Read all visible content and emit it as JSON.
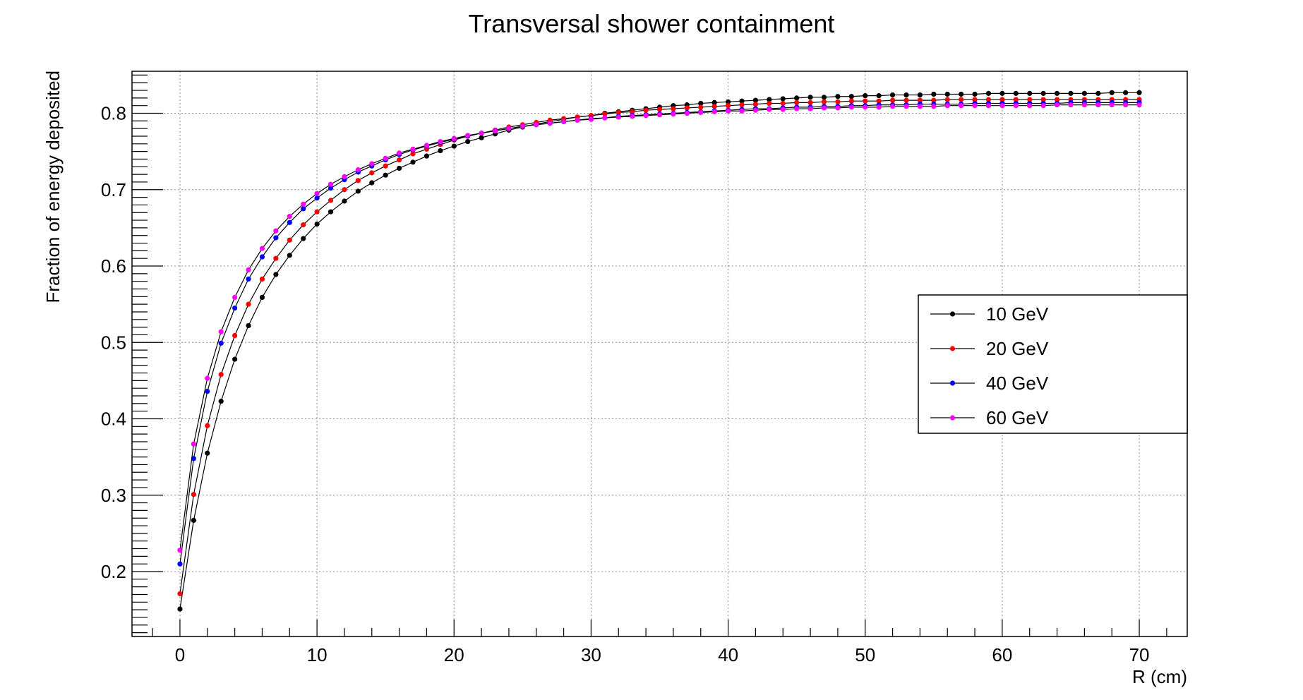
{
  "chart_data": {
    "type": "line",
    "title": "Transversal shower containment",
    "xlabel": "R (cm)",
    "ylabel": "Fraction of energy deposited",
    "xlim": [
      -3.5,
      73.5
    ],
    "ylim": [
      0.115,
      0.855
    ],
    "x_ticks": [
      0,
      10,
      20,
      30,
      40,
      50,
      60,
      70
    ],
    "x_tick_labels": [
      "0",
      "10",
      "20",
      "30",
      "40",
      "50",
      "60",
      "70"
    ],
    "y_ticks": [
      0.2,
      0.3,
      0.4,
      0.5,
      0.6,
      0.7,
      0.8
    ],
    "y_tick_labels": [
      "0.2",
      "0.3",
      "0.4",
      "0.5",
      "0.6",
      "0.7",
      "0.8"
    ],
    "grid": true,
    "legend_position": "right",
    "x": [
      0,
      1,
      2,
      3,
      4,
      5,
      6,
      7,
      8,
      9,
      10,
      11,
      12,
      13,
      14,
      15,
      16,
      17,
      18,
      19,
      20,
      21,
      22,
      23,
      24,
      25,
      26,
      27,
      28,
      29,
      30,
      31,
      32,
      33,
      34,
      35,
      36,
      37,
      38,
      39,
      40,
      41,
      42,
      43,
      44,
      45,
      46,
      47,
      48,
      49,
      50,
      51,
      52,
      53,
      54,
      55,
      56,
      57,
      58,
      59,
      60,
      61,
      62,
      63,
      64,
      65,
      66,
      67,
      68,
      69,
      70
    ],
    "series": [
      {
        "name": "10 GeV",
        "color": "#000000",
        "values": [
          0.151,
          0.267,
          0.355,
          0.423,
          0.478,
          0.522,
          0.559,
          0.589,
          0.614,
          0.636,
          0.655,
          0.671,
          0.685,
          0.698,
          0.709,
          0.719,
          0.728,
          0.736,
          0.744,
          0.751,
          0.757,
          0.763,
          0.768,
          0.773,
          0.778,
          0.782,
          0.786,
          0.789,
          0.792,
          0.795,
          0.797,
          0.8,
          0.802,
          0.804,
          0.806,
          0.808,
          0.81,
          0.811,
          0.813,
          0.814,
          0.815,
          0.816,
          0.817,
          0.818,
          0.819,
          0.82,
          0.821,
          0.821,
          0.822,
          0.822,
          0.823,
          0.823,
          0.824,
          0.824,
          0.824,
          0.825,
          0.825,
          0.825,
          0.825,
          0.826,
          0.826,
          0.826,
          0.826,
          0.826,
          0.826,
          0.826,
          0.826,
          0.826,
          0.827,
          0.827,
          0.827
        ]
      },
      {
        "name": "20 GeV",
        "color": "#ff0000",
        "values": [
          0.171,
          0.301,
          0.391,
          0.458,
          0.509,
          0.55,
          0.583,
          0.61,
          0.634,
          0.654,
          0.671,
          0.686,
          0.7,
          0.712,
          0.722,
          0.731,
          0.739,
          0.747,
          0.753,
          0.759,
          0.765,
          0.77,
          0.774,
          0.778,
          0.782,
          0.785,
          0.788,
          0.791,
          0.793,
          0.795,
          0.797,
          0.799,
          0.801,
          0.802,
          0.804,
          0.805,
          0.806,
          0.807,
          0.808,
          0.809,
          0.81,
          0.811,
          0.812,
          0.813,
          0.813,
          0.814,
          0.814,
          0.815,
          0.815,
          0.816,
          0.816,
          0.816,
          0.817,
          0.817,
          0.817,
          0.817,
          0.818,
          0.818,
          0.818,
          0.818,
          0.818,
          0.818,
          0.818,
          0.818,
          0.818,
          0.818,
          0.818,
          0.818,
          0.818,
          0.818,
          0.818
        ]
      },
      {
        "name": "40 GeV",
        "color": "#0000ff",
        "values": [
          0.21,
          0.348,
          0.436,
          0.499,
          0.545,
          0.583,
          0.612,
          0.637,
          0.657,
          0.675,
          0.689,
          0.702,
          0.713,
          0.723,
          0.731,
          0.739,
          0.746,
          0.752,
          0.757,
          0.762,
          0.766,
          0.77,
          0.774,
          0.777,
          0.78,
          0.783,
          0.785,
          0.787,
          0.789,
          0.791,
          0.793,
          0.794,
          0.796,
          0.797,
          0.798,
          0.799,
          0.8,
          0.801,
          0.802,
          0.803,
          0.804,
          0.805,
          0.806,
          0.806,
          0.807,
          0.808,
          0.808,
          0.809,
          0.809,
          0.81,
          0.81,
          0.811,
          0.811,
          0.811,
          0.812,
          0.812,
          0.812,
          0.812,
          0.813,
          0.813,
          0.813,
          0.813,
          0.813,
          0.813,
          0.813,
          0.814,
          0.814,
          0.814,
          0.814,
          0.814,
          0.814
        ]
      },
      {
        "name": "60 GeV",
        "color": "#ff00ff",
        "values": [
          0.228,
          0.367,
          0.453,
          0.514,
          0.559,
          0.595,
          0.623,
          0.646,
          0.665,
          0.681,
          0.695,
          0.707,
          0.717,
          0.726,
          0.734,
          0.741,
          0.748,
          0.753,
          0.758,
          0.763,
          0.767,
          0.771,
          0.774,
          0.777,
          0.78,
          0.783,
          0.785,
          0.787,
          0.789,
          0.791,
          0.792,
          0.794,
          0.795,
          0.796,
          0.797,
          0.798,
          0.799,
          0.8,
          0.801,
          0.802,
          0.803,
          0.803,
          0.804,
          0.805,
          0.805,
          0.806,
          0.806,
          0.807,
          0.807,
          0.808,
          0.808,
          0.808,
          0.809,
          0.809,
          0.809,
          0.809,
          0.81,
          0.81,
          0.81,
          0.81,
          0.81,
          0.81,
          0.81,
          0.81,
          0.811,
          0.811,
          0.811,
          0.811,
          0.811,
          0.811,
          0.811
        ]
      }
    ]
  }
}
